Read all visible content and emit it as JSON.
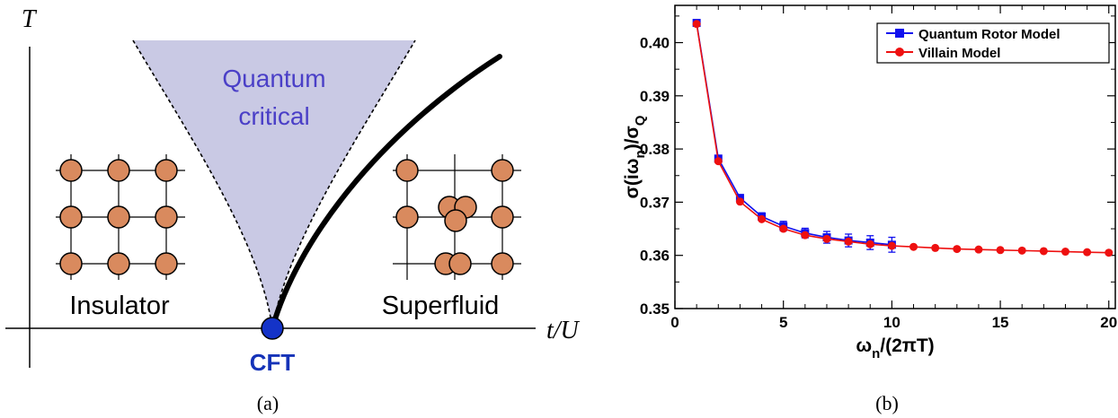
{
  "panel_a": {
    "y_axis_label": "T",
    "x_axis_label": "t/U",
    "quantum_critical_line1": "Quantum",
    "quantum_critical_line2": "critical",
    "insulator_label": "Insulator",
    "superfluid_label": "Superfluid",
    "cft_label": "CFT",
    "caption": "(a)",
    "colors": {
      "critical_fan": "#c9c9e4",
      "critical_text": "#4a3fc7",
      "atom": "#d98a5e",
      "cft_point": "#1433c8",
      "cft_text": "#1533b8"
    }
  },
  "panel_b": {
    "caption": "(b)",
    "chart_data": {
      "type": "line",
      "xlabel": "ω_n/(2πT)",
      "ylabel": "σ(iω_n)/σ_Q",
      "xlim": [
        0,
        20.3
      ],
      "ylim": [
        0.35,
        0.407
      ],
      "xticks": [
        0,
        5,
        10,
        15,
        20
      ],
      "yticks": [
        0.35,
        0.36,
        0.37,
        0.38,
        0.39,
        0.4
      ],
      "grid": false,
      "legend_position": "top-right",
      "series": [
        {
          "name": "Quantum Rotor Model",
          "color": "#1010ee",
          "marker": "square",
          "x": [
            1,
            2,
            3,
            4,
            5,
            6,
            7,
            8,
            9,
            10
          ],
          "y": [
            0.4037,
            0.3782,
            0.3708,
            0.3673,
            0.3655,
            0.3642,
            0.3634,
            0.3628,
            0.3624,
            0.362
          ],
          "err": [
            0.0005,
            0.0006,
            0.0006,
            0.0007,
            0.0009,
            0.0009,
            0.0011,
            0.0012,
            0.0013,
            0.0014
          ]
        },
        {
          "name": "Villain Model",
          "color": "#ee1010",
          "marker": "circle",
          "x": [
            1,
            2,
            3,
            4,
            5,
            6,
            7,
            8,
            9,
            10,
            11,
            12,
            13,
            14,
            15,
            16,
            17,
            18,
            19,
            20
          ],
          "y": [
            0.4035,
            0.3777,
            0.3701,
            0.3668,
            0.365,
            0.3638,
            0.3631,
            0.3626,
            0.3621,
            0.3618,
            0.3616,
            0.3614,
            0.3612,
            0.3611,
            0.361,
            0.3609,
            0.3608,
            0.3607,
            0.3606,
            0.3605
          ]
        }
      ]
    }
  }
}
